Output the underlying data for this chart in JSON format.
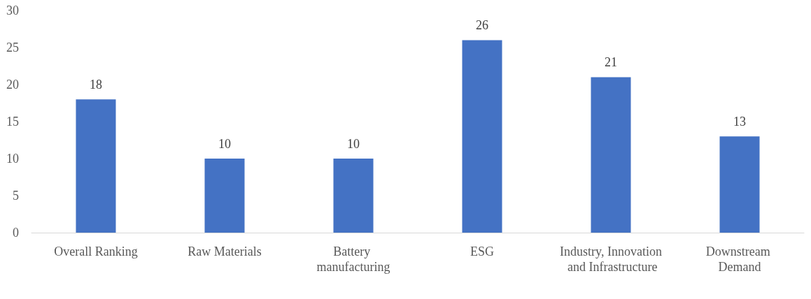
{
  "chart_data": {
    "type": "bar",
    "categories": [
      "Overall Ranking",
      "Raw Materials",
      "Battery manufacturing",
      "ESG",
      "Industry, Innovation and Infrastructure",
      "Downstream Demand"
    ],
    "values": [
      18,
      10,
      10,
      26,
      21,
      13
    ],
    "color": "#4472c4",
    "ylim": [
      0,
      30
    ],
    "yticks": [
      0,
      5,
      10,
      15,
      20,
      25,
      30
    ],
    "grid": false,
    "data_labels": true
  }
}
